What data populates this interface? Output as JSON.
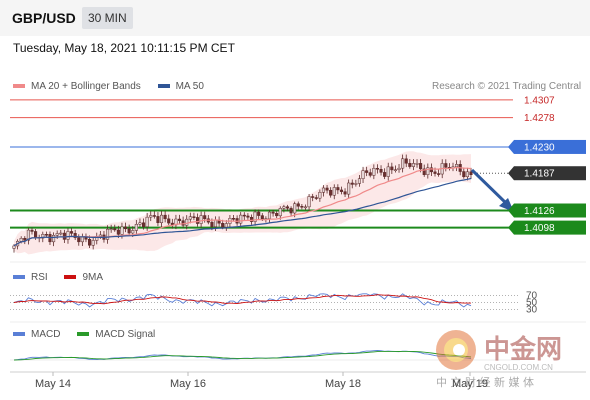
{
  "header": {
    "symbol": "GBP/USD",
    "interval": "30 MIN",
    "timestamp": "Tuesday, May 18, 2021 10:11:15 PM CET"
  },
  "legend": {
    "ma20_label": "MA 20 + Bollinger Bands",
    "ma50_label": "MA 50",
    "research": "Research © 2021 Trading Central"
  },
  "rsi_legend": {
    "rsi_label": "RSI",
    "ma_label": "9MA"
  },
  "macd_legend": {
    "macd_label": "MACD",
    "signal_label": "MACD Signal"
  },
  "colors": {
    "ma20": "#f08a8a",
    "ma50": "#2f5596",
    "resistance": "#e8574f",
    "pivot": "#3a6fd8",
    "current": "#333333",
    "support": "#1c8a1c",
    "rsi": "#5a7fd6",
    "rsi_ma": "#cc1111",
    "macd": "#5a7fd6",
    "macd_signal": "#2a9a2a",
    "arrow": "#2f5a9e"
  },
  "watermark": {
    "name": "中金网",
    "domain": "CNGOLD.COM.CN",
    "tagline": "中 文 财 经 新 媒 体"
  },
  "chart_data": {
    "type": "candlestick",
    "x_ticks": [
      "May 14",
      "May 16",
      "May 18",
      "May 19"
    ],
    "y_range": [
      1.4045,
      1.4315
    ],
    "levels": [
      {
        "label": "1.4307",
        "value": 1.4307,
        "kind": "resistance"
      },
      {
        "label": "1.4278",
        "value": 1.4278,
        "kind": "resistance"
      },
      {
        "label": "1.4230",
        "value": 1.423,
        "kind": "pivot"
      },
      {
        "label": "1.4187",
        "value": 1.4187,
        "kind": "current"
      },
      {
        "label": "1.4126",
        "value": 1.4126,
        "kind": "support"
      },
      {
        "label": "1.4098",
        "value": 1.4098,
        "kind": "support"
      }
    ],
    "price_path": [
      [
        0,
        1.4065
      ],
      [
        8,
        1.4085
      ],
      [
        18,
        1.4088
      ],
      [
        30,
        1.4082
      ],
      [
        40,
        1.408
      ],
      [
        48,
        1.4082
      ],
      [
        56,
        1.409
      ],
      [
        66,
        1.41
      ],
      [
        76,
        1.411
      ],
      [
        88,
        1.4112
      ],
      [
        100,
        1.4108
      ],
      [
        110,
        1.411
      ],
      [
        120,
        1.4106
      ],
      [
        128,
        1.411
      ],
      [
        136,
        1.4122
      ],
      [
        144,
        1.4117
      ],
      [
        152,
        1.4125
      ],
      [
        162,
        1.414
      ],
      [
        170,
        1.415
      ],
      [
        178,
        1.4157
      ],
      [
        186,
        1.4165
      ],
      [
        194,
        1.4178
      ],
      [
        202,
        1.419
      ],
      [
        210,
        1.4195
      ],
      [
        218,
        1.42
      ],
      [
        228,
        1.4196
      ],
      [
        236,
        1.4192
      ],
      [
        244,
        1.4195
      ],
      [
        250,
        1.419
      ],
      [
        256,
        1.4187
      ]
    ],
    "rsi": {
      "levels": [
        70,
        50,
        30
      ],
      "range": [
        20,
        80
      ]
    },
    "macd": {}
  }
}
